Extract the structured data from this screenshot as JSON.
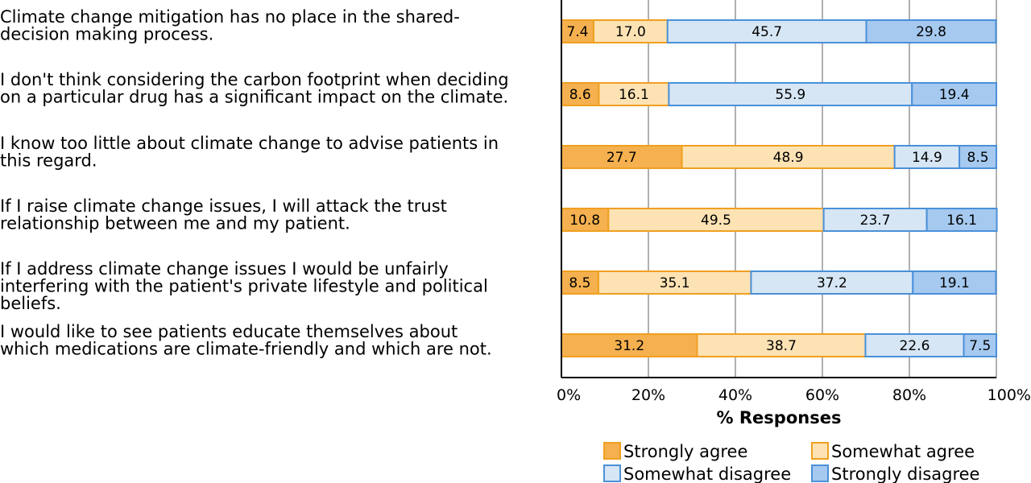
{
  "chart_data": {
    "type": "bar",
    "orientation": "horizontal",
    "stacked": true,
    "percent_stacked": true,
    "categories": [
      [
        "Climate change mitigation has no place in the shared-",
        "decision making process."
      ],
      [
        "I don't think considering the carbon footprint when deciding",
        "on a particular drug has a significant impact on the climate."
      ],
      [
        "I know too little about climate change to advise patients in",
        "this regard."
      ],
      [
        "If I raise climate change issues, I will attack the trust",
        "relationship between me and my patient."
      ],
      [
        "If I address climate change issues I would be unfairly",
        "interfering with the patient's private lifestyle and political",
        "beliefs."
      ],
      [
        "I would like to see patients educate themselves about",
        "which medications are climate-friendly and which are not."
      ]
    ],
    "series": [
      {
        "name": "Strongly agree",
        "color": "#f5b04f",
        "edge": "#f0a020",
        "values": [
          7.4,
          8.6,
          27.7,
          10.8,
          8.5,
          31.2
        ]
      },
      {
        "name": "Somewhat agree",
        "color": "#fde2b4",
        "edge": "#f0a020",
        "values": [
          17.0,
          16.1,
          48.9,
          49.5,
          35.1,
          38.7
        ]
      },
      {
        "name": "Somewhat disagree",
        "color": "#d6e6f5",
        "edge": "#4a90d9",
        "values": [
          45.7,
          55.9,
          14.9,
          23.7,
          37.2,
          22.6
        ]
      },
      {
        "name": "Strongly disagree",
        "color": "#a6c9ef",
        "edge": "#4a90d9",
        "values": [
          29.8,
          19.4,
          8.5,
          16.1,
          19.1,
          7.5
        ]
      }
    ],
    "xticks": [
      "0%",
      "20%",
      "40%",
      "60%",
      "80%",
      "100%"
    ],
    "xlim": [
      0,
      100
    ],
    "xlabel": "% Responses",
    "grid": true,
    "legend_position": "bottom"
  }
}
